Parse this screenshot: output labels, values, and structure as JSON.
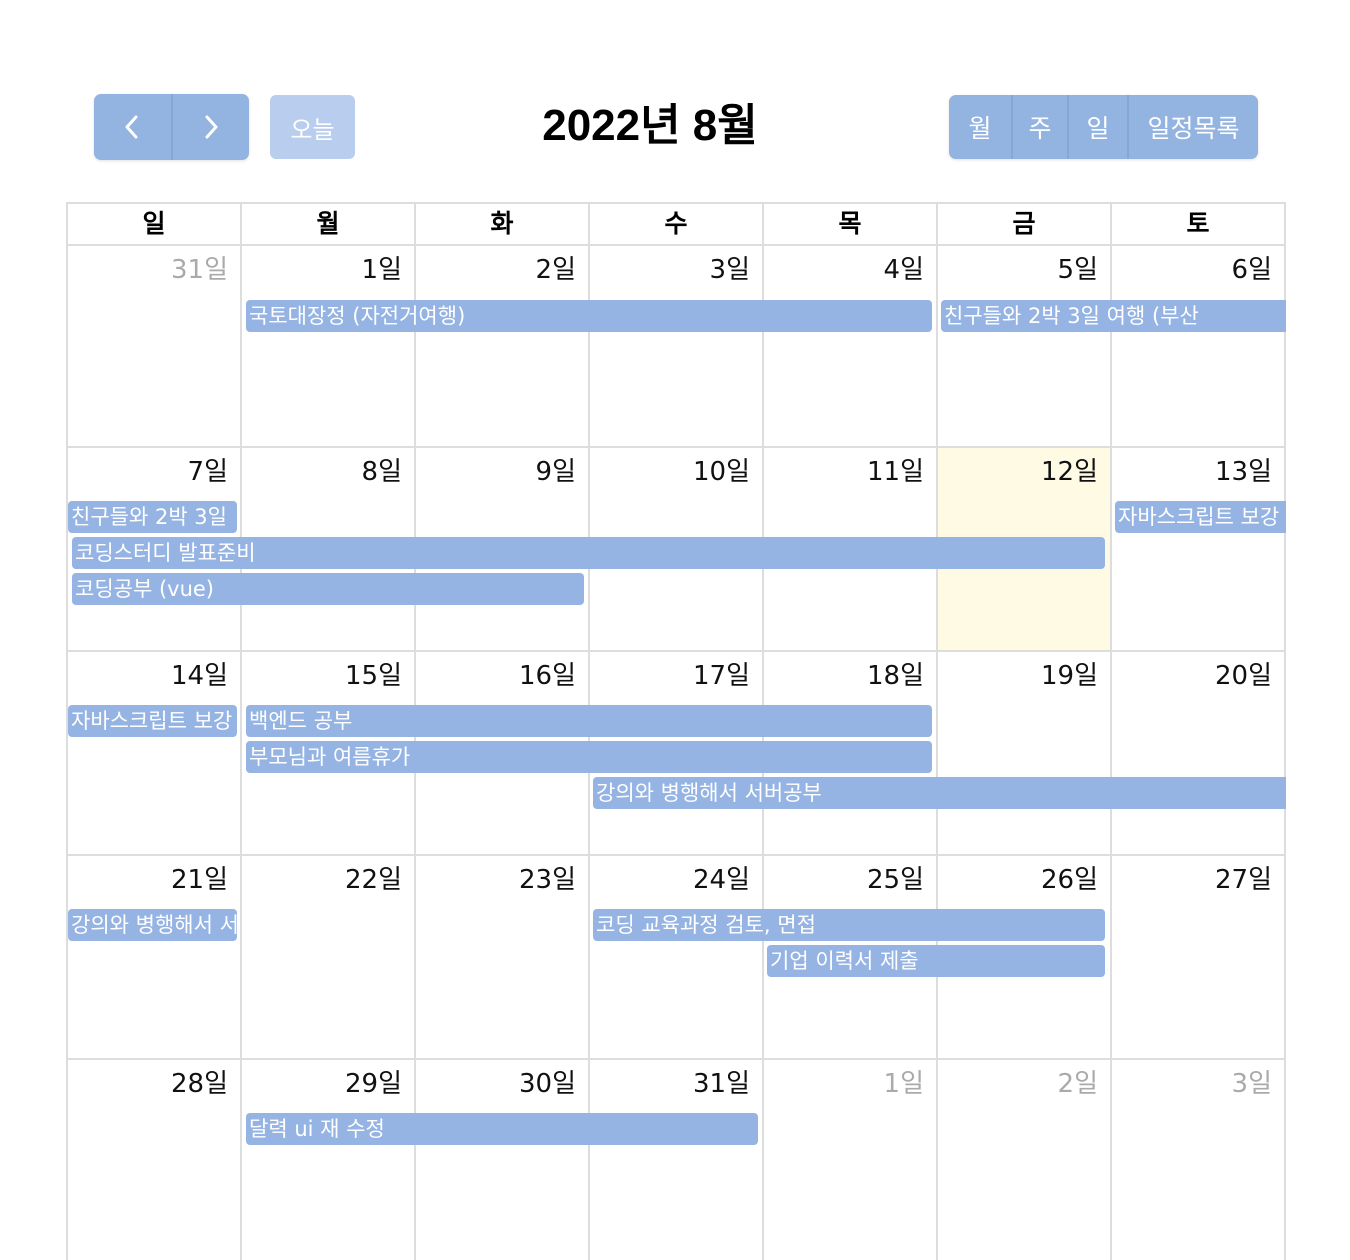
{
  "header": {
    "prev_icon": "chevron-left-icon",
    "next_icon": "chevron-right-icon",
    "today_label": "오늘",
    "title": "2022년 8월",
    "views": [
      "월",
      "주",
      "일",
      "일정목록"
    ]
  },
  "colors": {
    "accent": "#95b4e3",
    "today_bg": "#fffae3",
    "grid": "#dddddd"
  },
  "weekdays": [
    "일",
    "월",
    "화",
    "수",
    "목",
    "금",
    "토"
  ],
  "weeks": [
    [
      "31일",
      "1일",
      "2일",
      "3일",
      "4일",
      "5일",
      "6일"
    ],
    [
      "7일",
      "8일",
      "9일",
      "10일",
      "11일",
      "12일",
      "13일"
    ],
    [
      "14일",
      "15일",
      "16일",
      "17일",
      "18일",
      "19일",
      "20일"
    ],
    [
      "21일",
      "22일",
      "23일",
      "24일",
      "25일",
      "26일",
      "27일"
    ],
    [
      "28일",
      "29일",
      "30일",
      "31일",
      "1일",
      "2일",
      "3일"
    ]
  ],
  "events": [
    {
      "title": "국토대장정 (자전거여행)"
    },
    {
      "title": "친구들와 2박 3일 여행 (부산"
    },
    {
      "title": "친구들와 2박 3일"
    },
    {
      "title": "자바스크립트 보강"
    },
    {
      "title": "코딩스터디 발표준비"
    },
    {
      "title": "코딩공부 (vue)"
    },
    {
      "title": "자바스크립트 보강"
    },
    {
      "title": "백엔드 공부"
    },
    {
      "title": "부모님과 여름휴가"
    },
    {
      "title": "강의와 병행해서 서버공부"
    },
    {
      "title": "강의와 병행해서 서"
    },
    {
      "title": "코딩 교육과정 검토, 면접"
    },
    {
      "title": "기업 이력서 제출"
    },
    {
      "title": "달력 ui 재 수정"
    }
  ]
}
